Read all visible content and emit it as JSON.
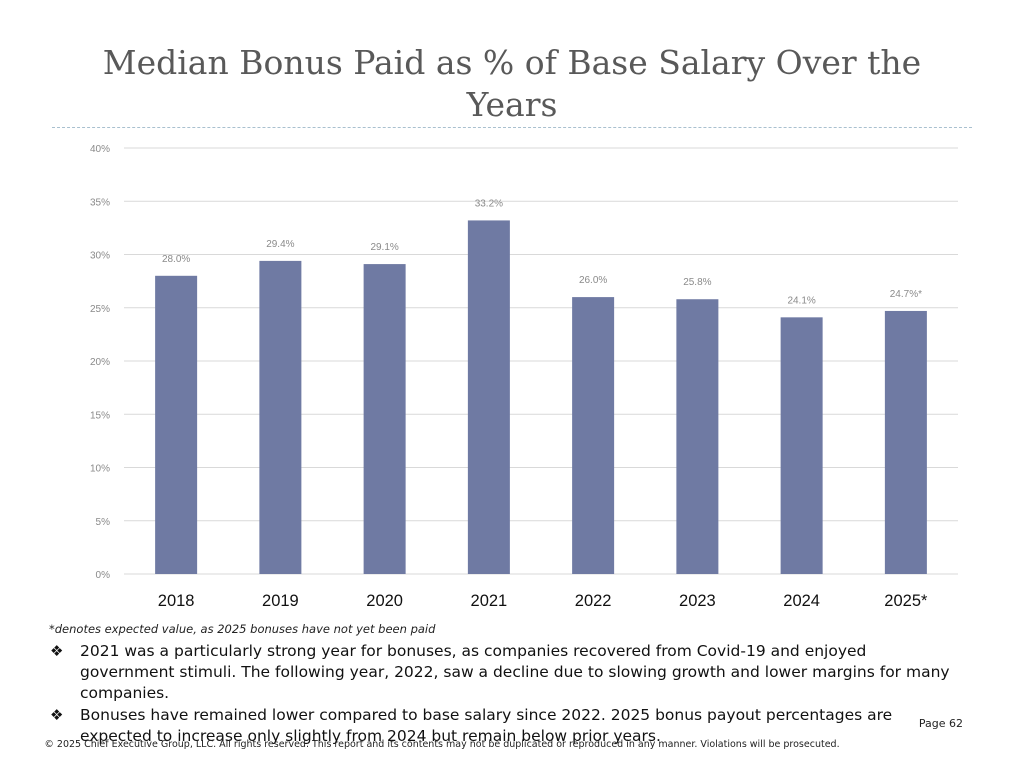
{
  "chart_data": {
    "type": "bar",
    "title": "Median Bonus Paid as % of Base Salary Over the Years",
    "categories": [
      "2018",
      "2019",
      "2020",
      "2021",
      "2022",
      "2023",
      "2024",
      "2025*"
    ],
    "values": [
      28.0,
      29.4,
      29.1,
      33.2,
      26.0,
      25.8,
      24.1,
      24.7
    ],
    "value_labels": [
      "28.0%",
      "29.4%",
      "29.1%",
      "33.2%",
      "26.0%",
      "25.8%",
      "24.1%",
      "24.7%*"
    ],
    "ylim": [
      0,
      40
    ],
    "yticks": [
      0,
      5,
      10,
      15,
      20,
      25,
      30,
      35,
      40
    ],
    "ytick_labels": [
      "0%",
      "5%",
      "10%",
      "15%",
      "20%",
      "25%",
      "30%",
      "35%",
      "40%"
    ],
    "xlabel": "",
    "ylabel": "",
    "bar_color": "#6f7aa3",
    "grid": true,
    "legend": "none"
  },
  "footnote": "*denotes expected value, as 2025 bonuses have not yet been paid",
  "notes": [
    "2021 was a particularly strong year for bonuses, as companies recovered from Covid-19 and enjoyed government stimuli. The following year, 2022, saw a decline due to slowing growth and lower margins for many companies.",
    "Bonuses have remained lower compared to base salary since 2022.  2025 bonus payout percentages are expected to increase only slightly from 2024 but remain below prior years."
  ],
  "bullet_glyph": "❖",
  "page_number": "Page 62",
  "copyright": "© 2025 Chief Executive Group, LLC. All rights reserved. This report and its contents may not be duplicated or reproduced in any manner. Violations will be prosecuted."
}
